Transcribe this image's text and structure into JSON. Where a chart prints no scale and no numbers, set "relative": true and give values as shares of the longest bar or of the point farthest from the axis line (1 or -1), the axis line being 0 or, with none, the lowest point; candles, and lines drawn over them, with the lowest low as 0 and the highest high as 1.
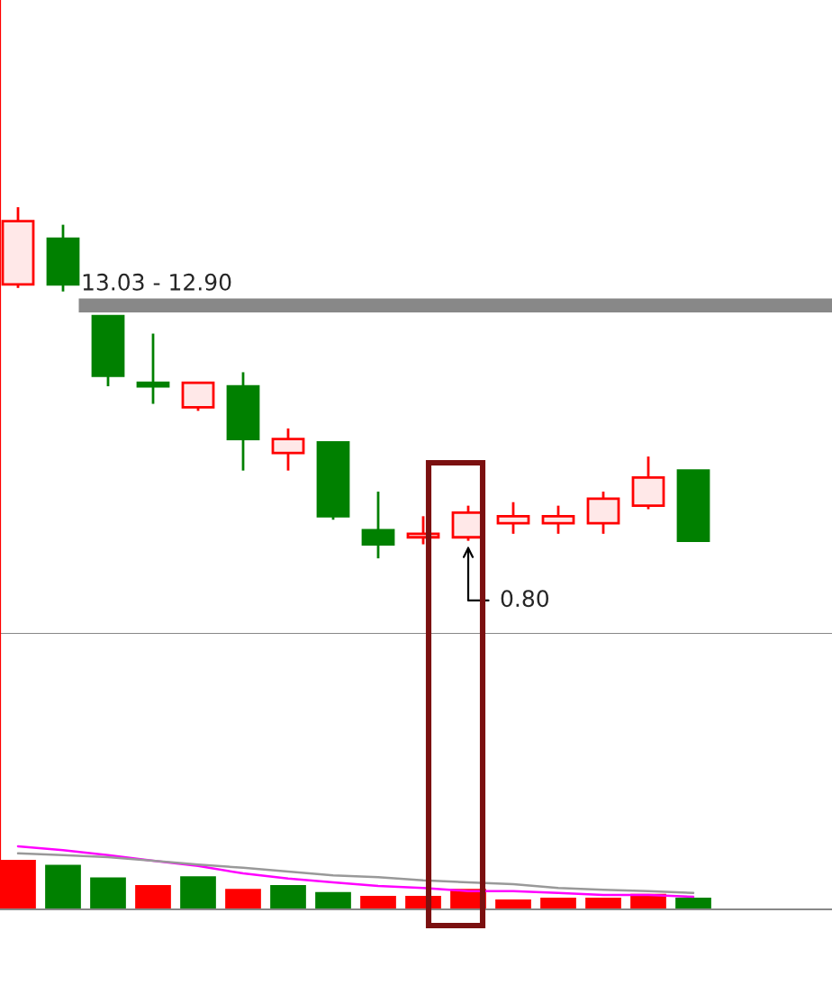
{
  "chart_data": [
    {
      "type": "candlestick",
      "relative": true,
      "categories": [
        null,
        null,
        null,
        null,
        null,
        null,
        null,
        null,
        null,
        null,
        null,
        null,
        null,
        null,
        null,
        null
      ],
      "ohlc": [
        [
          0.78,
          1.0,
          0.77,
          0.96
        ],
        [
          0.91,
          0.95,
          0.76,
          0.78
        ],
        [
          0.69,
          0.69,
          0.49,
          0.52
        ],
        [
          0.5,
          0.64,
          0.44,
          0.49
        ],
        [
          0.43,
          0.5,
          0.42,
          0.5
        ],
        [
          0.49,
          0.53,
          0.25,
          0.34
        ],
        [
          0.3,
          0.37,
          0.25,
          0.34
        ],
        [
          0.33,
          0.33,
          0.11,
          0.12
        ],
        [
          0.08,
          0.19,
          0.0,
          0.04
        ],
        [
          0.06,
          0.12,
          0.04,
          0.07
        ],
        [
          0.06,
          0.15,
          0.05,
          0.13
        ],
        [
          0.1,
          0.16,
          0.07,
          0.12
        ],
        [
          0.1,
          0.15,
          0.07,
          0.12
        ],
        [
          0.1,
          0.19,
          0.07,
          0.17
        ],
        [
          0.15,
          0.29,
          0.14,
          0.23
        ],
        [
          0.25,
          0.25,
          0.05,
          0.05
        ]
      ],
      "colors": [
        "#ff0000",
        "#008000",
        "#008000",
        "#008000",
        "#ff0000",
        "#008000",
        "#ff0000",
        "#008000",
        "#008000",
        "#ff0000",
        "#ff0000",
        "#ff0000",
        "#ff0000",
        "#ff0000",
        "#ff0000",
        "#008000"
      ],
      "bands": [
        {
          "axis": "y",
          "from": 0.7,
          "to": 0.74,
          "label": "13.03 - 12.90",
          "color": "#888888"
        }
      ],
      "annotations": [
        "0.80"
      ]
    },
    {
      "type": "bar",
      "relative": true,
      "categories": [
        null,
        null,
        null,
        null,
        null,
        null,
        null,
        null,
        null,
        null,
        null,
        null,
        null,
        null,
        null,
        null
      ],
      "values": [
        0.77,
        0.69,
        0.49,
        0.37,
        0.51,
        0.31,
        0.37,
        0.26,
        0.2,
        0.2,
        0.31,
        0.14,
        0.17,
        0.17,
        0.23,
        0.17
      ],
      "colors": [
        "#ff0000",
        "#008000",
        "#008000",
        "#ff0000",
        "#008000",
        "#ff0000",
        "#008000",
        "#008000",
        "#ff0000",
        "#ff0000",
        "#ff0000",
        "#ff0000",
        "#ff0000",
        "#ff0000",
        "#ff0000",
        "#008000"
      ],
      "series": [
        {
          "type": "line",
          "color": "#ff00ff",
          "values": [
            1.0,
            0.94,
            0.86,
            0.77,
            0.69,
            0.57,
            0.49,
            0.43,
            0.37,
            0.34,
            0.29,
            0.29,
            0.26,
            0.23,
            0.23,
            0.2
          ]
        },
        {
          "type": "line",
          "color": "#999999",
          "values": [
            0.89,
            0.86,
            0.83,
            0.77,
            0.71,
            0.66,
            0.6,
            0.54,
            0.51,
            0.46,
            0.43,
            0.4,
            0.34,
            0.31,
            0.29,
            0.26
          ]
        }
      ]
    }
  ]
}
